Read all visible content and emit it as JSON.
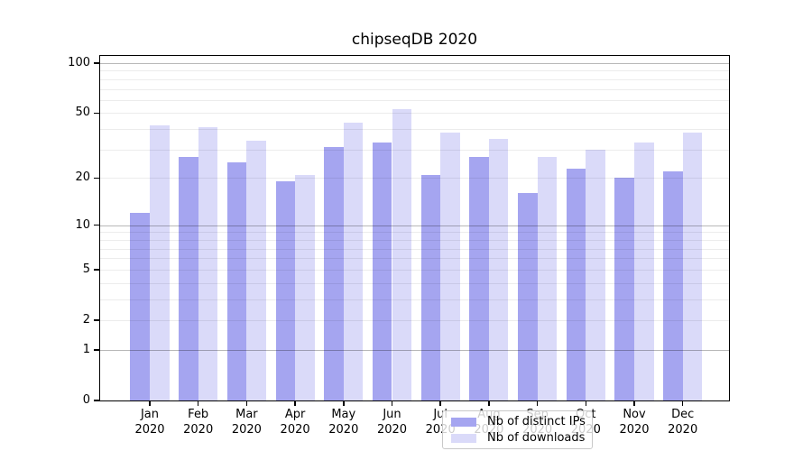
{
  "chart_data": {
    "type": "bar",
    "title": "chipseqDB 2020",
    "months": [
      "Jan",
      "Feb",
      "Mar",
      "Apr",
      "May",
      "Jun",
      "Jul",
      "Aug",
      "Sep",
      "Oct",
      "Nov",
      "Dec"
    ],
    "year": "2020",
    "series": [
      {
        "name": "Nb of distinct IPs",
        "color": "#a5a5f0",
        "values": [
          12,
          27,
          25,
          19,
          31,
          33,
          21,
          27,
          16,
          23,
          20,
          22
        ]
      },
      {
        "name": "Nb of downloads",
        "color": "#dadaf9",
        "values": [
          42,
          41,
          34,
          21,
          44,
          53,
          38,
          35,
          27,
          30,
          33,
          38
        ]
      }
    ],
    "xlabel": "",
    "ylabel": "",
    "yscale": "log1p",
    "yticks": [
      0,
      1,
      2,
      5,
      10,
      20,
      50,
      100
    ],
    "ylim": [
      0,
      112
    ],
    "grid": {
      "on": true,
      "position": "above-bars",
      "major_lines": [
        1,
        10,
        100
      ],
      "minor_lines": [
        2,
        3,
        4,
        5,
        6,
        7,
        8,
        9,
        20,
        30,
        40,
        50,
        60,
        70,
        80,
        90
      ]
    },
    "legend": {
      "position": "lower-center",
      "entries": [
        "Nb of distinct IPs",
        "Nb of downloads"
      ]
    }
  }
}
